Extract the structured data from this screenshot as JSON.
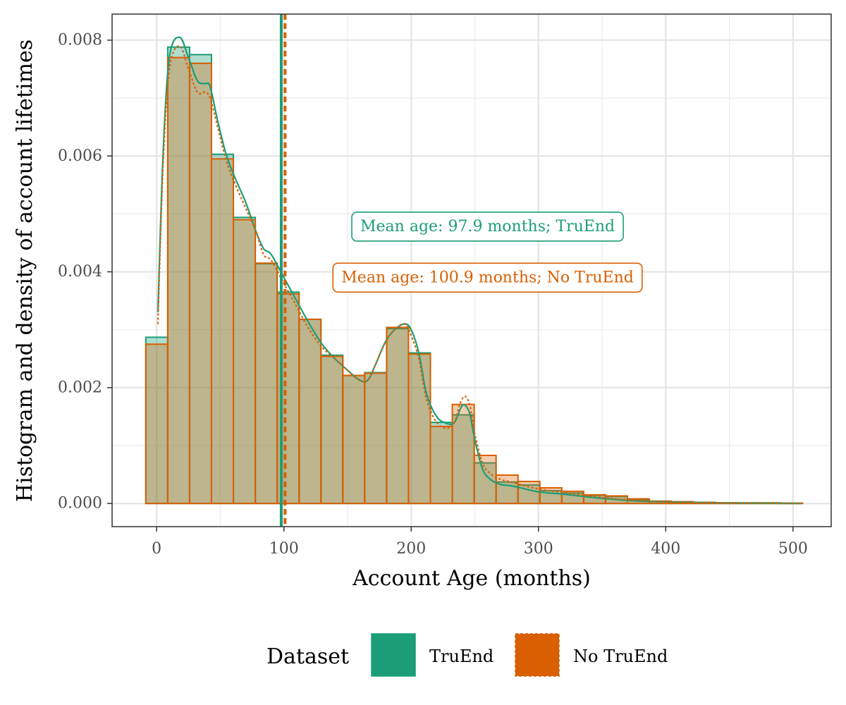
{
  "chart_data": {
    "type": "bar",
    "title": "",
    "xlabel": "Account Age (months)",
    "ylabel": "Histogram and density of account lifetimes",
    "xlim": [
      -35,
      530
    ],
    "ylim": [
      -0.0004,
      0.00845
    ],
    "x_ticks": [
      0,
      100,
      200,
      300,
      400,
      500
    ],
    "x_tick_labels": [
      "0",
      "100",
      "200",
      "300",
      "400",
      "500"
    ],
    "y_ticks": [
      0,
      0.002,
      0.004,
      0.006,
      0.008
    ],
    "y_tick_labels": [
      "0.000",
      "0.002",
      "0.004",
      "0.006",
      "0.008"
    ],
    "grid": true,
    "bin_edges": [
      -8.5,
      8.7,
      25.9,
      43.1,
      60.3,
      77.5,
      94.7,
      111.9,
      129.1,
      146.3,
      163.5,
      180.7,
      197.9,
      215.1,
      232.3,
      249.5,
      266.7,
      283.9,
      301.1,
      318.3,
      335.5,
      352.7,
      369.9,
      387.1,
      404.3,
      421.5,
      438.7,
      455.9,
      473.1,
      490.3,
      507.5
    ],
    "series": [
      {
        "name": "TruEnd",
        "color": "#1b9e77",
        "line_style": "solid",
        "histogram": [
          0.00287,
          0.00788,
          0.00775,
          0.00603,
          0.00494,
          0.00414,
          0.00365,
          0.00318,
          0.00256,
          0.00221,
          0.00226,
          0.00302,
          0.0026,
          0.0014,
          0.00153,
          0.0007,
          0.00037,
          0.00032,
          0.00022,
          0.00018,
          0.00014,
          0.00012,
          6e-05,
          4e-05,
          3e-05,
          2e-05,
          1e-05,
          1e-05,
          1e-05,
          5e-06
        ],
        "density_x": [
          1,
          5,
          10,
          18,
          25,
          32,
          38,
          42,
          48,
          55,
          62,
          70,
          78,
          84,
          90,
          100,
          110,
          120,
          130,
          140,
          150,
          158,
          164,
          168,
          172,
          180,
          187,
          195,
          200,
          206,
          212,
          220,
          228,
          234,
          239,
          242,
          246,
          250,
          256,
          262,
          270,
          280,
          300,
          320,
          340,
          360,
          380,
          400,
          450,
          506
        ],
        "density_y": [
          0.0033,
          0.006,
          0.0077,
          0.00805,
          0.0077,
          0.0073,
          0.00725,
          0.0072,
          0.0066,
          0.006,
          0.0056,
          0.0052,
          0.0047,
          0.0044,
          0.0043,
          0.0039,
          0.0035,
          0.0031,
          0.00275,
          0.0025,
          0.0023,
          0.00215,
          0.0021,
          0.0022,
          0.0024,
          0.0028,
          0.003,
          0.0031,
          0.003,
          0.0026,
          0.0019,
          0.0015,
          0.00138,
          0.0014,
          0.00165,
          0.0017,
          0.00155,
          0.0011,
          0.0006,
          0.00042,
          0.00033,
          0.0003,
          0.0002,
          0.00016,
          0.00011,
          7e-05,
          4e-05,
          3e-05,
          1e-05,
          0.0
        ],
        "mean": 97.9,
        "annotation": "Mean age: 97.9 months; TruEnd"
      },
      {
        "name": "No TruEnd",
        "color": "#d95f02",
        "line_style": "dotted",
        "histogram": [
          0.00275,
          0.0077,
          0.0076,
          0.00595,
          0.0049,
          0.00415,
          0.00362,
          0.00318,
          0.00254,
          0.00221,
          0.00225,
          0.00304,
          0.00258,
          0.00133,
          0.00171,
          0.00083,
          0.00049,
          0.00038,
          0.00027,
          0.00021,
          0.00015,
          0.00013,
          8e-05,
          4e-05,
          3e-05,
          2e-05,
          1e-05,
          1e-05,
          1e-05,
          5e-06
        ],
        "density_x": [
          1,
          5,
          10,
          18,
          25,
          32,
          38,
          42,
          48,
          55,
          62,
          70,
          78,
          84,
          90,
          100,
          110,
          120,
          130,
          140,
          150,
          158,
          164,
          168,
          172,
          180,
          187,
          195,
          200,
          206,
          212,
          220,
          228,
          234,
          238,
          242,
          246,
          250,
          256,
          262,
          270,
          280,
          300,
          320,
          340,
          360,
          380,
          400,
          450,
          506
        ],
        "density_y": [
          0.0031,
          0.0058,
          0.0075,
          0.0079,
          0.0075,
          0.0071,
          0.0071,
          0.007,
          0.0065,
          0.0059,
          0.0055,
          0.0051,
          0.0047,
          0.0043,
          0.0042,
          0.0038,
          0.0034,
          0.003,
          0.0027,
          0.0025,
          0.0023,
          0.00215,
          0.0021,
          0.0022,
          0.0024,
          0.0028,
          0.003,
          0.0031,
          0.0029,
          0.0025,
          0.0018,
          0.0014,
          0.0013,
          0.0014,
          0.0017,
          0.00185,
          0.0017,
          0.0012,
          0.0007,
          0.00052,
          0.00042,
          0.00036,
          0.00025,
          0.00019,
          0.00013,
          8e-05,
          5e-05,
          3e-05,
          1e-05,
          0.0
        ],
        "mean": 100.9,
        "annotation": "Mean age: 100.9 months; No TruEnd"
      }
    ],
    "annotations": [
      {
        "series": "TruEnd",
        "text": "Mean age: 97.9 months; TruEnd",
        "x": 260,
        "y": 0.00478
      },
      {
        "series": "No TruEnd",
        "text": "Mean age: 100.9 months; No TruEnd",
        "x": 260,
        "y": 0.0039
      }
    ],
    "legend": {
      "title": "Dataset",
      "position": "bottom",
      "entries": [
        "TruEnd",
        "No TruEnd"
      ]
    }
  }
}
